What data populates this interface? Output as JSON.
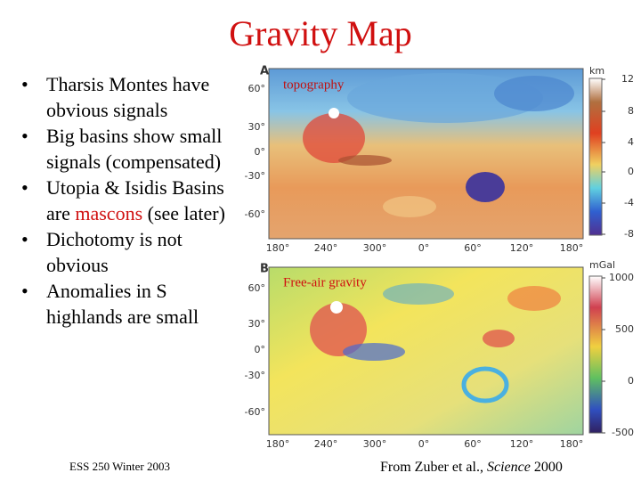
{
  "title": "Gravity Map",
  "bullets": [
    [
      "Tharsis Montes have obvious signals"
    ],
    [
      "Big basins show small signals (compensated)"
    ],
    [
      "Utopia & Isidis Basins are ",
      "mascons",
      " (see later)"
    ],
    [
      "Dichotomy is not obvious"
    ],
    [
      "Anomalies in S highlands are small"
    ]
  ],
  "figure": {
    "panels": [
      {
        "letter": "A",
        "label": "topography",
        "lat_labels": [
          "60°",
          "30°",
          "0°",
          "-30°",
          "-60°"
        ],
        "lon_labels": [
          "180°",
          "240°",
          "300°",
          "0°",
          "60°",
          "120°",
          "180°"
        ],
        "colorbar": {
          "unit": "km",
          "ticks": [
            "12",
            "8",
            "4",
            "0",
            "-4",
            "-8"
          ]
        }
      },
      {
        "letter": "B",
        "label": "Free-air gravity",
        "lat_labels": [
          "60°",
          "30°",
          "0°",
          "-30°",
          "-60°"
        ],
        "lon_labels": [
          "180°",
          "240°",
          "300°",
          "0°",
          "60°",
          "120°",
          "180°"
        ],
        "colorbar": {
          "unit": "mGal",
          "ticks": [
            "1000",
            "500",
            "0",
            "-500"
          ]
        }
      }
    ]
  },
  "footer": {
    "left": "ESS 250 Winter 2003",
    "right": [
      "From Zuber et al., ",
      "Science",
      " 2000"
    ]
  }
}
